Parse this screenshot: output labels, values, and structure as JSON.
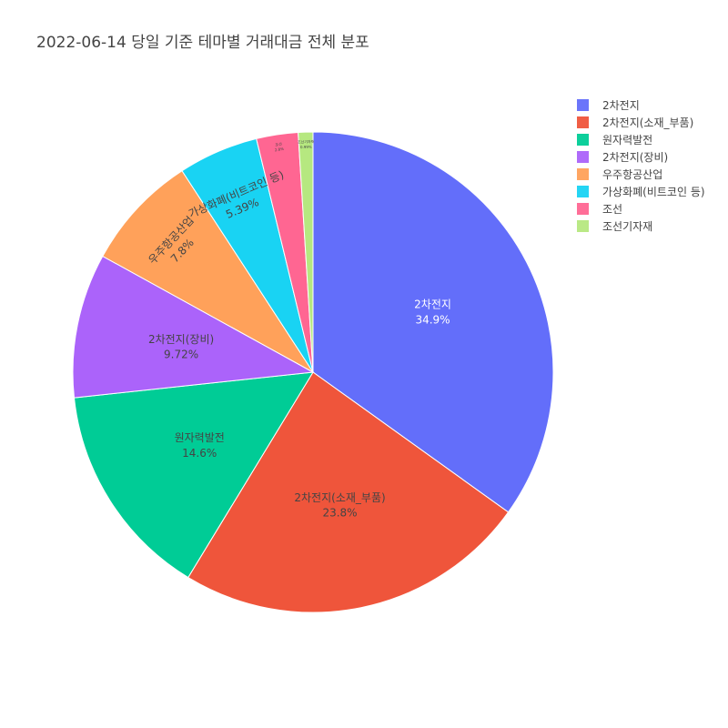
{
  "colors": {
    "background": "#ffffff",
    "text": "#444444",
    "slice_border": "#ffffff"
  },
  "chart_data": {
    "type": "pie",
    "title": "2022-06-14 당일 기준 테마별 거래대금 전체 분포",
    "legend_position": "top-right",
    "slices": [
      {
        "label": "2차전지",
        "value": 34.9,
        "percent_text": "34.9%",
        "color": "#636efa",
        "label_color": "#ffffff"
      },
      {
        "label": "2차전지(소재_부품)",
        "value": 23.8,
        "percent_text": "23.8%",
        "color": "#ef553b",
        "label_color": "#444444"
      },
      {
        "label": "원자력발전",
        "value": 14.6,
        "percent_text": "14.6%",
        "color": "#00cc96",
        "label_color": "#444444"
      },
      {
        "label": "2차전지(장비)",
        "value": 9.72,
        "percent_text": "9.72%",
        "color": "#ab63fa",
        "label_color": "#444444"
      },
      {
        "label": "우주항공산업",
        "value": 7.8,
        "percent_text": "7.8%",
        "color": "#ffa15a",
        "label_color": "#444444"
      },
      {
        "label": "가상화폐(비트코인 등)",
        "value": 5.39,
        "percent_text": "5.39%",
        "color": "#19d3f3",
        "label_color": "#444444"
      },
      {
        "label": "조선",
        "value": 2.8,
        "percent_text": "2.8%",
        "color": "#ff6692",
        "label_color": "#444444"
      },
      {
        "label": "조선기자재",
        "value": 0.99,
        "percent_text": "0.99%",
        "color": "#b6e880",
        "label_color": "#444444"
      }
    ]
  }
}
